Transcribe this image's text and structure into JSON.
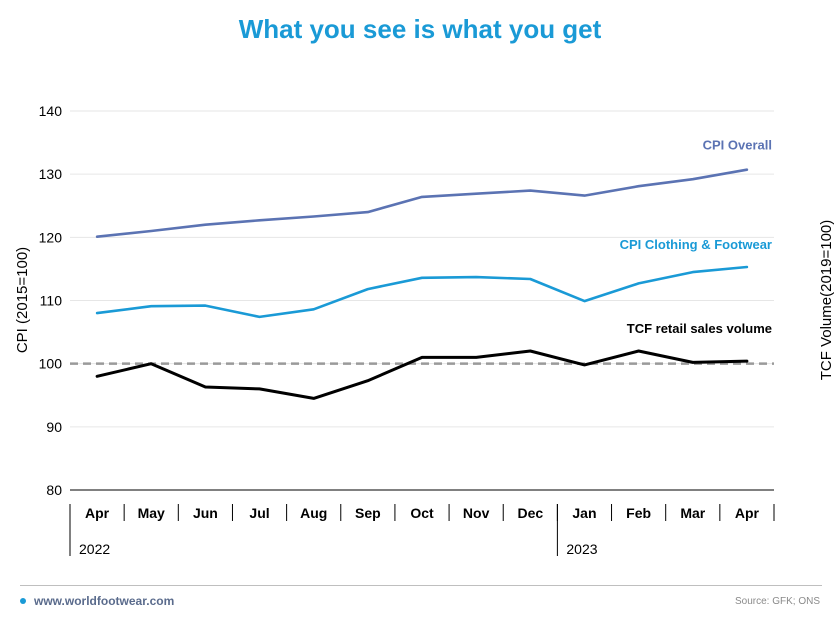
{
  "title": "What you see is what you get",
  "footer": {
    "website": "www.worldfootwear.com",
    "source": "Source: GFK; ONS",
    "dot_icon": "bullet-dot"
  },
  "colors": {
    "title": "#1a9ad6",
    "cpi_overall": "#5b73b3",
    "cpi_clothing": "#1a9ad6",
    "tcf": "#000000",
    "reference": "#9a9a9a"
  },
  "chart_data": {
    "type": "line",
    "title": "What you see is what you get",
    "ylabel": "CPI (2015=100)",
    "y2label": "TCF Volume(2019=100)",
    "ylim": [
      80,
      140
    ],
    "yticks": [
      80,
      90,
      100,
      110,
      120,
      130,
      140
    ],
    "categories": [
      "Apr",
      "May",
      "Jun",
      "Jul",
      "Aug",
      "Sep",
      "Oct",
      "Nov",
      "Dec",
      "Jan",
      "Feb",
      "Mar",
      "Apr"
    ],
    "year_groups": [
      {
        "label": "2022",
        "start": 0,
        "end": 8
      },
      {
        "label": "2023",
        "start": 9,
        "end": 12
      }
    ],
    "reference_line": {
      "value": 100,
      "style": "dashed"
    },
    "grid": true,
    "series": [
      {
        "name": "CPI Overall",
        "color": "#5b73b3",
        "values": [
          120.1,
          121.0,
          122.0,
          122.7,
          123.3,
          124.0,
          126.4,
          126.9,
          127.4,
          126.6,
          128.1,
          129.2,
          130.7
        ]
      },
      {
        "name": "CPI Clothing & Footwear",
        "color": "#1a9ad6",
        "values": [
          108.0,
          109.1,
          109.2,
          107.4,
          108.6,
          111.8,
          113.6,
          113.7,
          113.4,
          109.9,
          112.7,
          114.5,
          115.3
        ]
      },
      {
        "name": "TCF retail sales volume",
        "color": "#000000",
        "values": [
          98.0,
          100.0,
          96.3,
          96.0,
          94.5,
          97.3,
          101.0,
          101.0,
          102.0,
          99.8,
          102.0,
          100.2,
          100.4
        ]
      }
    ]
  }
}
